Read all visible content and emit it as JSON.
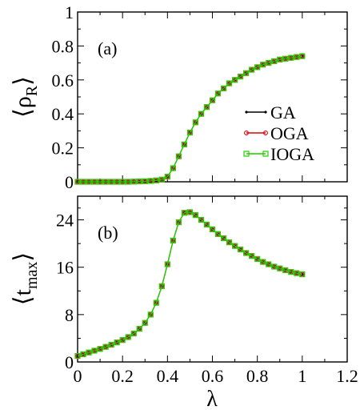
{
  "chart_data": [
    {
      "type": "line",
      "panel_label": "(a)",
      "ylabel": "⟨ρR⟩",
      "ylabel_main": "ρ",
      "ylabel_sub": "R",
      "xlabel": "",
      "xlim": [
        0,
        1.2
      ],
      "ylim": [
        0,
        1
      ],
      "x_ticks": [
        0,
        0.2,
        0.4,
        0.6,
        0.8,
        1,
        1.2
      ],
      "x_tick_labels_shown": false,
      "y_ticks": [
        0,
        0.2,
        0.4,
        0.6,
        0.8,
        1
      ],
      "y_tick_labels": [
        "0",
        "0.2",
        "0.4",
        "0.6",
        "0.8",
        "1"
      ],
      "grid": false,
      "legend_position": "right",
      "x": [
        0.0,
        0.025,
        0.05,
        0.075,
        0.1,
        0.125,
        0.15,
        0.175,
        0.2,
        0.225,
        0.25,
        0.275,
        0.3,
        0.325,
        0.35,
        0.375,
        0.4,
        0.425,
        0.45,
        0.475,
        0.5,
        0.525,
        0.55,
        0.575,
        0.6,
        0.625,
        0.65,
        0.675,
        0.7,
        0.725,
        0.75,
        0.775,
        0.8,
        0.825,
        0.85,
        0.875,
        0.9,
        0.925,
        0.95,
        0.975,
        1.0
      ],
      "series": [
        {
          "name": "GA",
          "color": "#000000",
          "marker": "dot",
          "values": [
            0.0,
            0.0,
            0.0,
            0.0,
            0.0,
            0.0,
            0.0,
            0.0,
            0.0,
            0.0,
            0.001,
            0.002,
            0.003,
            0.005,
            0.008,
            0.013,
            0.03,
            0.08,
            0.15,
            0.22,
            0.29,
            0.35,
            0.4,
            0.44,
            0.48,
            0.52,
            0.55,
            0.58,
            0.6,
            0.62,
            0.64,
            0.66,
            0.675,
            0.69,
            0.7,
            0.71,
            0.72,
            0.725,
            0.73,
            0.735,
            0.74
          ]
        },
        {
          "name": "OGA",
          "color": "#e00000",
          "marker": "circle",
          "values": [
            0.0,
            0.0,
            0.0,
            0.0,
            0.0,
            0.0,
            0.0,
            0.0,
            0.0,
            0.0,
            0.001,
            0.002,
            0.003,
            0.005,
            0.008,
            0.013,
            0.03,
            0.08,
            0.15,
            0.22,
            0.29,
            0.35,
            0.4,
            0.44,
            0.48,
            0.52,
            0.55,
            0.58,
            0.6,
            0.62,
            0.64,
            0.66,
            0.675,
            0.69,
            0.7,
            0.71,
            0.72,
            0.725,
            0.73,
            0.735,
            0.74
          ]
        },
        {
          "name": "IOGA",
          "color": "#22cc00",
          "marker": "square",
          "values": [
            0.0,
            0.0,
            0.0,
            0.0,
            0.0,
            0.0,
            0.0,
            0.0,
            0.0,
            0.0,
            0.001,
            0.002,
            0.003,
            0.005,
            0.008,
            0.013,
            0.03,
            0.08,
            0.15,
            0.22,
            0.29,
            0.35,
            0.4,
            0.44,
            0.48,
            0.52,
            0.55,
            0.58,
            0.6,
            0.62,
            0.64,
            0.66,
            0.675,
            0.69,
            0.7,
            0.71,
            0.72,
            0.725,
            0.73,
            0.735,
            0.74
          ]
        }
      ]
    },
    {
      "type": "line",
      "panel_label": "(b)",
      "ylabel": "⟨tmax⟩",
      "ylabel_main": "t",
      "ylabel_sub": "max",
      "xlabel": "λ",
      "xlim": [
        0,
        1.2
      ],
      "ylim": [
        0,
        28
      ],
      "x_ticks": [
        0,
        0.2,
        0.4,
        0.6,
        0.8,
        1,
        1.2
      ],
      "x_tick_labels": [
        "0",
        "0.2",
        "0.4",
        "0.6",
        "0.8",
        "1",
        "1.2"
      ],
      "y_ticks": [
        0,
        8,
        16,
        24
      ],
      "y_tick_labels": [
        "0",
        "8",
        "16",
        "24"
      ],
      "grid": false,
      "x": [
        0.0,
        0.025,
        0.05,
        0.075,
        0.1,
        0.125,
        0.15,
        0.175,
        0.2,
        0.225,
        0.25,
        0.275,
        0.3,
        0.325,
        0.35,
        0.375,
        0.4,
        0.425,
        0.45,
        0.475,
        0.5,
        0.525,
        0.55,
        0.575,
        0.6,
        0.625,
        0.65,
        0.675,
        0.7,
        0.725,
        0.75,
        0.775,
        0.8,
        0.825,
        0.85,
        0.875,
        0.9,
        0.925,
        0.95,
        0.975,
        1.0
      ],
      "series": [
        {
          "name": "GA",
          "color": "#000000",
          "marker": "dot",
          "values": [
            1.0,
            1.3,
            1.6,
            1.9,
            2.2,
            2.55,
            2.9,
            3.3,
            3.7,
            4.2,
            4.8,
            5.6,
            6.6,
            8.0,
            10.0,
            12.8,
            16.5,
            20.5,
            23.6,
            25.2,
            25.3,
            24.8,
            24.0,
            23.2,
            22.4,
            21.6,
            20.9,
            20.2,
            19.6,
            19.0,
            18.4,
            17.9,
            17.4,
            16.9,
            16.5,
            16.1,
            15.8,
            15.5,
            15.2,
            15.0,
            14.8
          ]
        },
        {
          "name": "OGA",
          "color": "#e00000",
          "marker": "circle",
          "values": [
            1.0,
            1.3,
            1.6,
            1.9,
            2.2,
            2.55,
            2.9,
            3.3,
            3.7,
            4.2,
            4.8,
            5.6,
            6.6,
            8.0,
            10.0,
            12.8,
            16.5,
            20.5,
            23.6,
            25.2,
            25.3,
            24.8,
            24.0,
            23.2,
            22.4,
            21.6,
            20.9,
            20.2,
            19.6,
            19.0,
            18.4,
            17.9,
            17.4,
            16.9,
            16.5,
            16.1,
            15.8,
            15.5,
            15.2,
            15.0,
            14.8
          ]
        },
        {
          "name": "IOGA",
          "color": "#22cc00",
          "marker": "square",
          "values": [
            1.0,
            1.3,
            1.6,
            1.9,
            2.2,
            2.55,
            2.9,
            3.3,
            3.7,
            4.2,
            4.8,
            5.6,
            6.6,
            8.0,
            10.0,
            12.8,
            16.5,
            20.5,
            23.6,
            25.2,
            25.3,
            24.8,
            24.0,
            23.2,
            22.4,
            21.6,
            20.9,
            20.2,
            19.6,
            19.0,
            18.4,
            17.9,
            17.4,
            16.9,
            16.5,
            16.1,
            15.8,
            15.5,
            15.2,
            15.0,
            14.8
          ]
        }
      ]
    }
  ]
}
